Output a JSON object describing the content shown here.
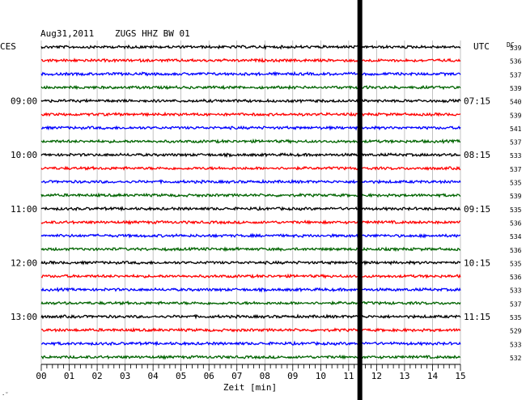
{
  "header": {
    "date": "Aug31,2011",
    "station": "ZUGS HHZ BW 01"
  },
  "left_label": "CES",
  "right_label": "UTC",
  "dc_label": "DC",
  "footer_mark": "·˜",
  "chart_data": {
    "type": "line",
    "title": "Aug31,2011   ZUGS HHZ BW 01",
    "xlabel": "Zeit [min]",
    "xlim": [
      0,
      15
    ],
    "x_ticks": [
      "00",
      "01",
      "02",
      "03",
      "04",
      "05",
      "06",
      "07",
      "08",
      "09",
      "10",
      "11",
      "12",
      "13",
      "14",
      "15"
    ],
    "left_time_labels": [
      "09:00",
      "10:00",
      "11:00",
      "12:00",
      "13:00"
    ],
    "right_time_labels": [
      "07:15",
      "08:15",
      "09:15",
      "10:15",
      "11:15"
    ],
    "label_every_n_traces": 4,
    "first_labeled_trace": 4,
    "trace_colors": [
      "#000000",
      "#ff0000",
      "#0000ff",
      "#006400"
    ],
    "dc_values": [
      "539",
      "536",
      "537",
      "539",
      "540",
      "539",
      "541",
      "537",
      "533",
      "537",
      "535",
      "539",
      "535",
      "536",
      "534",
      "536",
      "535",
      "536",
      "533",
      "537",
      "535",
      "529",
      "533",
      "532"
    ],
    "marker_minute": 11.4,
    "grid": true
  }
}
